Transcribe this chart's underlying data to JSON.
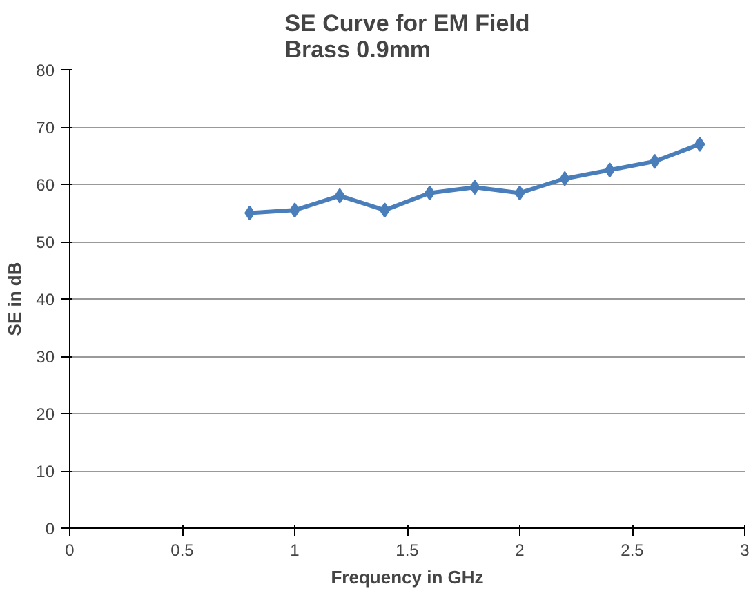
{
  "chart_data": {
    "type": "line",
    "title": "SE Curve for EM Field\nBrass 0.9mm",
    "xlabel": "Frequency in GHz",
    "ylabel": "SE in dB",
    "x": [
      0.8,
      1.0,
      1.2,
      1.4,
      1.6,
      1.8,
      2.0,
      2.2,
      2.4,
      2.6,
      2.8
    ],
    "series": [
      {
        "color": "#4a7ebb",
        "values": [
          55,
          55.5,
          58,
          55.5,
          58.5,
          59.5,
          58.5,
          61,
          62.5,
          64,
          67
        ]
      }
    ],
    "xlim": [
      0,
      3
    ],
    "xticks": [
      0,
      0.5,
      1,
      1.5,
      2,
      2.5,
      3
    ],
    "ylim": [
      0,
      80
    ],
    "yticks": [
      0,
      10,
      20,
      30,
      40,
      50,
      60,
      70,
      80
    ],
    "grid": "y",
    "marker": "diamond"
  }
}
